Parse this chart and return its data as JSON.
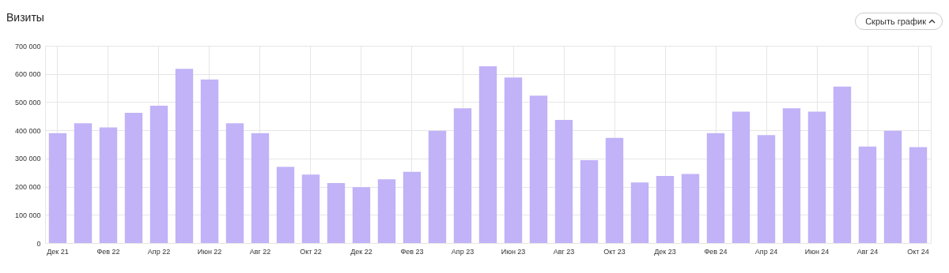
{
  "chart_data": {
    "type": "bar",
    "title": "Визиты",
    "annotations": [
      "Скрыть график"
    ],
    "categories": [
      "Дек 21",
      null,
      "Фев 22",
      null,
      "Апр 22",
      null,
      "Июн 22",
      null,
      "Авг 22",
      null,
      "Окт 22",
      null,
      "Дек 22",
      null,
      "Фев 23",
      null,
      "Апр 23",
      null,
      "Июн 23",
      null,
      "Авг 23",
      null,
      "Окт 23",
      null,
      "Дек 23",
      null,
      "Фев 24",
      null,
      "Апр 24",
      null,
      "Июн 24",
      null,
      "Авг 24",
      null,
      "Окт 24"
    ],
    "values": [
      390000,
      425000,
      410000,
      462000,
      487000,
      618000,
      580000,
      425000,
      390000,
      270000,
      243000,
      213000,
      198000,
      226000,
      253000,
      398000,
      478000,
      627000,
      587000,
      523000,
      437000,
      294000,
      373000,
      215000,
      238000,
      245000,
      390000,
      466000,
      383000,
      478000,
      466000,
      555000,
      342000,
      398000,
      340000
    ],
    "color": "#c2b2f7",
    "ylim": [
      0,
      700000
    ],
    "yticks": [
      {
        "value": 0,
        "label": "0"
      },
      {
        "value": 100000,
        "label": "100 000"
      },
      {
        "value": 200000,
        "label": "200 000"
      },
      {
        "value": 300000,
        "label": "300 000"
      },
      {
        "value": 400000,
        "label": "400 000"
      },
      {
        "value": 500000,
        "label": "500 000"
      },
      {
        "value": 600000,
        "label": "600 000"
      },
      {
        "value": 700000,
        "label": "700 000"
      }
    ],
    "grid": true
  }
}
